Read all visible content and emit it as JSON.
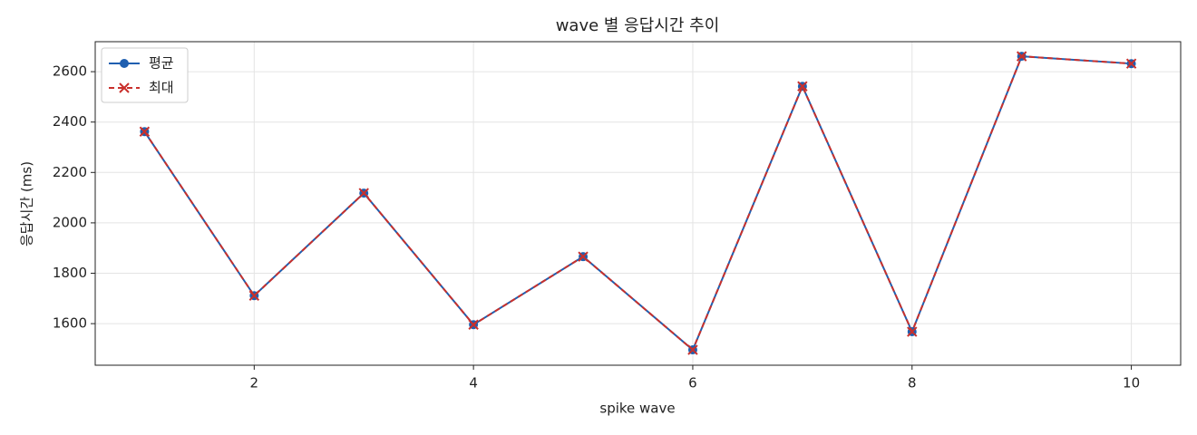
{
  "chart_data": {
    "type": "line",
    "title": "wave 별 응답시간 추이",
    "x_label": "spike wave",
    "y_label": "응답시간 (ms)",
    "x": [
      1,
      2,
      3,
      4,
      5,
      6,
      7,
      8,
      9,
      10
    ],
    "series": [
      {
        "name": "평균",
        "color": "#1f5fb0",
        "marker": "o",
        "linestyle": "solid",
        "values": [
          2362,
          1711,
          2118,
          1596,
          1866,
          1496,
          2542,
          1568,
          2661,
          2632
        ]
      },
      {
        "name": "최대",
        "color": "#c9302c",
        "marker": "x",
        "linestyle": "dashed",
        "values": [
          2362,
          1711,
          2118,
          1596,
          1866,
          1496,
          2542,
          1568,
          2661,
          2632
        ]
      }
    ],
    "xlim": [
      0.55,
      10.45
    ],
    "xticks": [
      2,
      4,
      6,
      8,
      10
    ],
    "ylim": [
      1435,
      2719
    ],
    "yticks": [
      1600,
      1800,
      2000,
      2200,
      2400,
      2600
    ],
    "grid": true,
    "legend": "upper left"
  }
}
